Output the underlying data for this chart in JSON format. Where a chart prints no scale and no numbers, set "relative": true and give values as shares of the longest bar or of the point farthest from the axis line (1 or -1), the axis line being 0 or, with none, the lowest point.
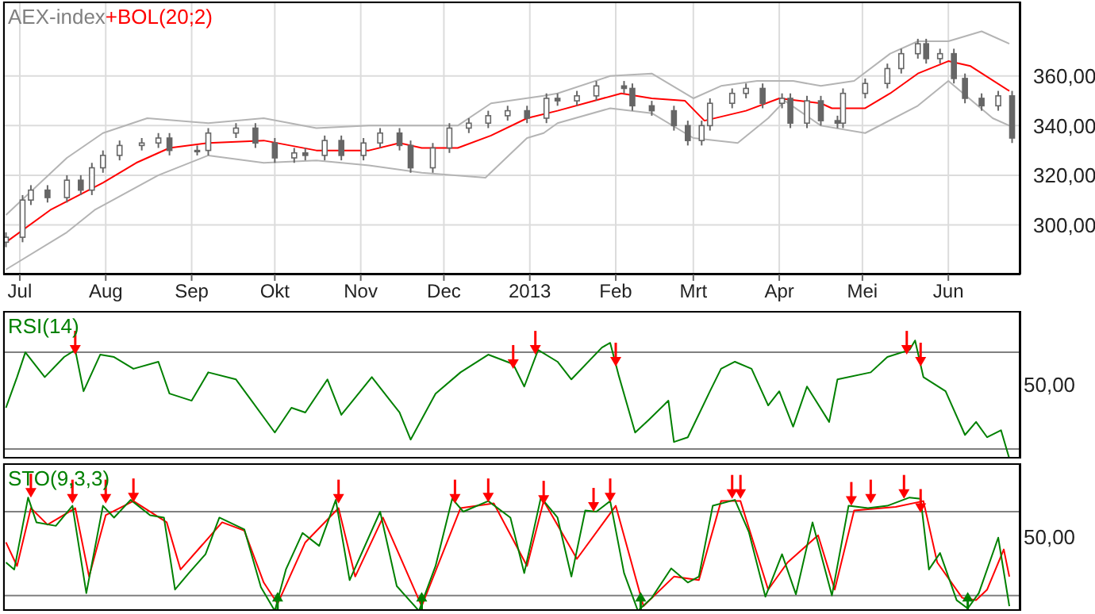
{
  "chart_data": [
    {
      "type": "candlestick",
      "title": "AEX-index",
      "color": "#666666",
      "legend": "top left",
      "grid": true,
      "tick_labels": "xy",
      "xlim": [
        "2012-06-25",
        "2013-06-27"
      ],
      "xticks": [
        {
          "value": "2012-07-01",
          "label": "Jul"
        },
        {
          "value": "2012-08-01",
          "label": "Aug"
        },
        {
          "value": "2012-09-01",
          "label": "Sep"
        },
        {
          "value": "2012-10-01",
          "label": "Okt"
        },
        {
          "value": "2012-11-01",
          "label": "Nov"
        },
        {
          "value": "2012-12-01",
          "label": "Dec"
        },
        {
          "value": "2013-01-01",
          "label": "2013"
        },
        {
          "value": "2013-02-01",
          "label": "Feb"
        },
        {
          "value": "2013-03-01",
          "label": "Mrt"
        },
        {
          "value": "2013-04-01",
          "label": "Apr"
        },
        {
          "value": "2013-05-01",
          "label": "Mei"
        },
        {
          "value": "2013-06-01",
          "label": "Jun"
        }
      ],
      "ylim": [
        280,
        390
      ],
      "yticks": [
        {
          "value": 300,
          "label": "300,00"
        },
        {
          "value": 320,
          "label": "320,00"
        },
        {
          "value": 340,
          "label": "340,00"
        },
        {
          "value": 360,
          "label": "360,00"
        }
      ],
      "x": [
        "2012-06-26",
        "2012-07-02",
        "2012-07-05",
        "2012-07-11",
        "2012-07-18",
        "2012-07-23",
        "2012-07-27",
        "2012-07-31",
        "2012-08-06",
        "2012-08-14",
        "2012-08-20",
        "2012-08-24",
        "2012-09-03",
        "2012-09-07",
        "2012-09-17",
        "2012-09-24",
        "2012-10-01",
        "2012-10-08",
        "2012-10-12",
        "2012-10-19",
        "2012-10-25",
        "2012-11-02",
        "2012-11-08",
        "2012-11-15",
        "2012-11-19",
        "2012-11-27",
        "2012-12-03",
        "2012-12-10",
        "2012-12-17",
        "2012-12-24",
        "2012-12-31",
        "2013-01-07",
        "2013-01-11",
        "2013-01-18",
        "2013-01-25",
        "2013-02-04",
        "2013-02-07",
        "2013-02-14",
        "2013-02-22",
        "2013-02-27",
        "2013-03-04",
        "2013-03-07",
        "2013-03-15",
        "2013-03-20",
        "2013-03-26",
        "2013-04-02",
        "2013-04-05",
        "2013-04-11",
        "2013-04-16",
        "2013-04-22",
        "2013-04-24",
        "2013-05-02",
        "2013-05-10",
        "2013-05-15",
        "2013-05-21",
        "2013-05-24",
        "2013-05-29",
        "2013-06-03",
        "2013-06-07",
        "2013-06-13",
        "2013-06-19",
        "2013-06-24"
      ],
      "ohlc": [
        [
          293,
          297,
          291,
          295
        ],
        [
          295,
          312,
          293,
          310
        ],
        [
          310,
          316,
          308,
          314
        ],
        [
          314,
          316,
          309,
          311
        ],
        [
          311,
          320,
          309,
          318
        ],
        [
          318,
          320,
          312,
          314
        ],
        [
          314,
          325,
          312,
          323
        ],
        [
          323,
          330,
          321,
          328
        ],
        [
          328,
          334,
          326,
          332
        ],
        [
          332,
          335,
          330,
          333
        ],
        [
          333,
          337,
          331,
          335
        ],
        [
          335,
          337,
          328,
          330
        ],
        [
          330,
          332,
          328,
          330
        ],
        [
          330,
          339,
          328,
          337
        ],
        [
          337,
          341,
          335,
          339
        ],
        [
          339,
          341,
          331,
          333
        ],
        [
          333,
          335,
          325,
          327
        ],
        [
          327,
          331,
          325,
          329
        ],
        [
          329,
          331,
          326,
          328
        ],
        [
          328,
          336,
          326,
          334
        ],
        [
          334,
          336,
          326,
          328
        ],
        [
          328,
          335,
          326,
          333
        ],
        [
          333,
          339,
          331,
          337
        ],
        [
          337,
          339,
          330,
          332
        ],
        [
          332,
          334,
          321,
          323
        ],
        [
          323,
          333,
          321,
          331
        ],
        [
          331,
          341,
          329,
          339
        ],
        [
          339,
          343,
          337,
          341
        ],
        [
          341,
          346,
          339,
          344
        ],
        [
          344,
          348,
          342,
          346
        ],
        [
          346,
          348,
          341,
          343
        ],
        [
          343,
          353,
          341,
          351
        ],
        [
          351,
          353,
          348,
          350
        ],
        [
          350,
          354,
          348,
          352
        ],
        [
          352,
          358,
          350,
          356
        ],
        [
          356,
          358,
          353,
          355
        ],
        [
          355,
          357,
          346,
          348
        ],
        [
          348,
          350,
          344,
          346
        ],
        [
          346,
          348,
          338,
          340
        ],
        [
          340,
          342,
          332,
          334
        ],
        [
          334,
          342,
          332,
          340
        ],
        [
          340,
          351,
          338,
          349
        ],
        [
          349,
          355,
          347,
          353
        ],
        [
          353,
          357,
          351,
          355
        ],
        [
          355,
          357,
          347,
          349
        ],
        [
          349,
          353,
          347,
          351
        ],
        [
          351,
          353,
          339,
          341
        ],
        [
          341,
          352,
          339,
          350
        ],
        [
          350,
          352,
          340,
          342
        ],
        [
          342,
          344,
          339,
          341
        ],
        [
          341,
          355,
          339,
          353
        ],
        [
          353,
          359,
          351,
          357
        ],
        [
          357,
          365,
          355,
          363
        ],
        [
          363,
          371,
          361,
          369
        ],
        [
          369,
          375,
          367,
          373
        ],
        [
          373,
          375,
          365,
          367
        ],
        [
          367,
          371,
          365,
          369
        ],
        [
          369,
          371,
          357,
          359
        ],
        [
          359,
          361,
          349,
          351
        ],
        [
          351,
          353,
          346,
          348
        ],
        [
          348,
          354,
          346,
          352
        ],
        [
          352,
          354,
          333,
          335
        ]
      ],
      "series": [
        {
          "type": "line",
          "color": "#b4b4b4",
          "x": [
            "2012-06-26",
            "2012-07-18",
            "2012-07-31",
            "2012-08-16",
            "2012-09-07",
            "2012-09-27",
            "2012-10-16",
            "2012-11-04",
            "2012-11-23",
            "2012-12-06",
            "2012-12-18",
            "2013-01-06",
            "2013-01-11",
            "2013-01-30",
            "2013-02-14",
            "2013-03-01",
            "2013-03-11",
            "2013-03-24",
            "2013-04-06",
            "2013-04-16",
            "2013-04-28",
            "2013-05-11",
            "2013-05-21",
            "2013-06-01",
            "2013-06-13",
            "2013-06-23"
          ],
          "values": [
            304,
            327,
            337,
            343,
            341,
            343,
            339,
            340,
            340,
            340,
            349,
            352,
            353,
            360,
            361,
            351,
            356,
            358,
            358,
            356,
            358,
            369,
            374,
            374,
            378,
            373
          ]
        },
        {
          "type": "line",
          "color": "#b4b4b4",
          "x": [
            "2012-06-26",
            "2012-07-18",
            "2012-07-28",
            "2012-08-20",
            "2012-09-07",
            "2012-09-27",
            "2012-10-16",
            "2012-11-04",
            "2012-11-23",
            "2012-12-16",
            "2012-12-31",
            "2013-01-06",
            "2013-01-11",
            "2013-01-30",
            "2013-02-14",
            "2013-03-01",
            "2013-03-17",
            "2013-03-28",
            "2013-04-03",
            "2013-04-16",
            "2013-05-02",
            "2013-05-21",
            "2013-06-01",
            "2013-06-17",
            "2013-06-23"
          ],
          "values": [
            282,
            297,
            306,
            320,
            328,
            325,
            326,
            324,
            321,
            319,
            335,
            337,
            341,
            347,
            345,
            335,
            333,
            343,
            350,
            340,
            337,
            348,
            358,
            343,
            340
          ]
        },
        {
          "type": "line",
          "name": "+BOL(20;2)",
          "color": "#ff0000",
          "x": [
            "2012-06-26",
            "2012-07-12",
            "2012-07-31",
            "2012-08-12",
            "2012-08-24",
            "2012-09-07",
            "2012-09-27",
            "2012-10-16",
            "2012-11-04",
            "2012-11-15",
            "2012-11-23",
            "2012-12-06",
            "2012-12-18",
            "2012-12-31",
            "2013-01-11",
            "2013-02-03",
            "2013-02-14",
            "2013-02-26",
            "2013-03-05",
            "2013-03-20",
            "2013-04-01",
            "2013-04-16",
            "2013-04-20",
            "2013-05-02",
            "2013-05-11",
            "2013-05-21",
            "2013-06-01",
            "2013-06-09",
            "2013-06-23"
          ],
          "values": [
            293,
            306,
            317,
            325,
            331,
            333,
            334,
            330,
            330,
            333,
            331,
            331,
            336,
            343,
            346,
            353,
            351,
            350,
            342,
            346,
            351,
            349,
            347,
            347,
            353,
            361,
            366,
            364,
            354
          ]
        }
      ]
    },
    {
      "type": "line",
      "legend": "top left",
      "grid": "x",
      "tick_labels": "y",
      "marker": "none",
      "xlim": [
        "2012-06-25",
        "2013-06-27"
      ],
      "xticks": [
        {
          "value": "2012-07-01",
          "label": null
        },
        {
          "value": "2012-08-01",
          "label": null
        },
        {
          "value": "2012-09-01",
          "label": null
        },
        {
          "value": "2012-10-01",
          "label": null
        },
        {
          "value": "2012-11-01",
          "label": null
        },
        {
          "value": "2012-12-01",
          "label": null
        },
        {
          "value": "2013-01-01",
          "label": null
        },
        {
          "value": "2013-02-01",
          "label": null
        },
        {
          "value": "2013-03-01",
          "label": null
        },
        {
          "value": "2013-04-01",
          "label": null
        },
        {
          "value": "2013-05-01",
          "label": null
        },
        {
          "value": "2013-06-01",
          "label": null
        }
      ],
      "relative": true,
      "annotations": [
        "50,00"
      ],
      "ref_lines": [
        {
          "axis": "y",
          "value": 0.9,
          "color": "#808080"
        },
        {
          "axis": "y",
          "value": 0.08,
          "color": "#808080"
        }
      ],
      "series": [
        {
          "name": "RSI(14)",
          "color": "#008000",
          "x": [
            "2012-06-26",
            "2012-06-30",
            "2012-07-03",
            "2012-07-10",
            "2012-07-17",
            "2012-07-21",
            "2012-07-24",
            "2012-07-30",
            "2012-08-04",
            "2012-08-11",
            "2012-08-20",
            "2012-08-24",
            "2012-09-01",
            "2012-09-07",
            "2012-09-17",
            "2012-09-22",
            "2012-10-01",
            "2012-10-07",
            "2012-10-12",
            "2012-10-20",
            "2012-10-25",
            "2012-11-05",
            "2012-11-15",
            "2012-11-19",
            "2012-11-28",
            "2012-12-07",
            "2012-12-17",
            "2012-12-26",
            "2012-12-30",
            "2013-01-04",
            "2013-01-11",
            "2013-01-16",
            "2013-01-27",
            "2013-01-30",
            "2013-02-02",
            "2013-02-08",
            "2013-02-13",
            "2013-02-20",
            "2013-02-22",
            "2013-02-27",
            "2013-03-07",
            "2013-03-11",
            "2013-03-16",
            "2013-03-22",
            "2013-03-28",
            "2013-04-01",
            "2013-04-06",
            "2013-04-11",
            "2013-04-19",
            "2013-04-22",
            "2013-05-04",
            "2013-05-10",
            "2013-05-18",
            "2013-05-20",
            "2013-05-23",
            "2013-05-31",
            "2013-06-07",
            "2013-06-11",
            "2013-06-15",
            "2013-06-20",
            "2013-06-23"
          ],
          "values": [
            0.43,
            0.69,
            0.9,
            0.69,
            0.86,
            0.92,
            0.57,
            0.88,
            0.86,
            0.76,
            0.82,
            0.55,
            0.49,
            0.73,
            0.67,
            0.51,
            0.22,
            0.43,
            0.39,
            0.67,
            0.37,
            0.69,
            0.39,
            0.16,
            0.55,
            0.73,
            0.88,
            0.8,
            0.61,
            0.92,
            0.82,
            0.67,
            0.94,
            0.98,
            0.71,
            0.22,
            0.33,
            0.49,
            0.14,
            0.18,
            0.57,
            0.76,
            0.82,
            0.76,
            0.45,
            0.57,
            0.27,
            0.61,
            0.31,
            0.67,
            0.73,
            0.86,
            0.92,
            1,
            0.69,
            0.57,
            0.2,
            0.31,
            0.18,
            0.24,
            0
          ]
        },
        {
          "type": "scatter",
          "marker": "triangle",
          "color": "#ff0000",
          "x": [
            "2012-07-21",
            "2012-12-26",
            "2013-01-03",
            "2013-02-01",
            "2013-05-17",
            "2013-05-22"
          ],
          "values": [
            0.92,
            0.8,
            0.92,
            0.82,
            0.92,
            0.82
          ]
        }
      ]
    },
    {
      "type": "line",
      "legend": "top left",
      "grid": "x",
      "tick_labels": "y",
      "marker": "none",
      "xlim": [
        "2012-06-25",
        "2013-06-27"
      ],
      "xticks": [
        {
          "value": "2012-07-01",
          "label": null
        },
        {
          "value": "2012-08-01",
          "label": null
        },
        {
          "value": "2012-09-01",
          "label": null
        },
        {
          "value": "2012-10-01",
          "label": null
        },
        {
          "value": "2012-11-01",
          "label": null
        },
        {
          "value": "2012-12-01",
          "label": null
        },
        {
          "value": "2013-01-01",
          "label": null
        },
        {
          "value": "2013-02-01",
          "label": null
        },
        {
          "value": "2013-03-01",
          "label": null
        },
        {
          "value": "2013-04-01",
          "label": null
        },
        {
          "value": "2013-05-01",
          "label": null
        },
        {
          "value": "2013-06-01",
          "label": null
        }
      ],
      "relative": true,
      "annotations": [
        "50,00"
      ],
      "ref_lines": [
        {
          "axis": "y",
          "value": 0.84,
          "color": "#808080"
        },
        {
          "axis": "y",
          "value": 0.13,
          "color": "#808080"
        }
      ],
      "series": [
        {
          "color": "#ff0000",
          "x": [
            "2012-06-26",
            "2012-06-30",
            "2012-07-05",
            "2012-07-11",
            "2012-07-21",
            "2012-07-26",
            "2012-08-01",
            "2012-08-11",
            "2012-08-23",
            "2012-08-28",
            "2012-09-12",
            "2012-09-20",
            "2012-09-27",
            "2012-10-02",
            "2012-10-12",
            "2012-10-24",
            "2012-10-30",
            "2012-11-09",
            "2012-11-23",
            "2012-12-07",
            "2012-12-19",
            "2012-12-31",
            "2013-01-06",
            "2013-01-18",
            "2013-02-01",
            "2013-02-11",
            "2013-02-22",
            "2013-03-03",
            "2013-03-11",
            "2013-03-18",
            "2013-03-28",
            "2013-04-04",
            "2013-04-15",
            "2013-04-21",
            "2013-04-28",
            "2013-05-13",
            "2013-05-23",
            "2013-05-28",
            "2013-06-06",
            "2013-06-11",
            "2013-06-15",
            "2013-06-21",
            "2013-06-23"
          ],
          "values": [
            0.58,
            0.38,
            0.87,
            0.73,
            0.87,
            0.29,
            0.81,
            0.93,
            0.75,
            0.35,
            0.75,
            0.68,
            0.24,
            0.06,
            0.58,
            0.87,
            0.29,
            0.79,
            0.04,
            0.87,
            0.91,
            0.38,
            0.93,
            0.44,
            0.89,
            0.04,
            0.29,
            0.26,
            0.93,
            0.93,
            0.18,
            0.41,
            0.64,
            0.18,
            0.85,
            0.88,
            0.93,
            0.41,
            0.11,
            0.09,
            0.18,
            0.52,
            0.29
          ]
        },
        {
          "name": "STO(9,3,3)",
          "color": "#008000",
          "x": [
            "2012-06-26",
            "2012-06-29",
            "2012-07-04",
            "2012-07-07",
            "2012-07-14",
            "2012-07-20",
            "2012-07-25",
            "2012-07-31",
            "2012-08-04",
            "2012-08-10",
            "2012-08-17",
            "2012-08-22",
            "2012-08-26",
            "2012-08-31",
            "2012-09-06",
            "2012-09-11",
            "2012-09-20",
            "2012-09-26",
            "2012-10-01",
            "2012-10-05",
            "2012-10-11",
            "2012-10-17",
            "2012-10-23",
            "2012-10-28",
            "2012-11-08",
            "2012-11-14",
            "2012-11-22",
            "2012-11-28",
            "2012-12-04",
            "2012-12-08",
            "2012-12-17",
            "2012-12-25",
            "2012-12-30",
            "2013-01-05",
            "2013-01-11",
            "2013-01-16",
            "2013-01-21",
            "2013-01-25",
            "2013-01-30",
            "2013-02-04",
            "2013-02-09",
            "2013-02-14",
            "2013-02-21",
            "2013-02-27",
            "2013-03-03",
            "2013-03-08",
            "2013-03-16",
            "2013-03-21",
            "2013-03-27",
            "2013-04-02",
            "2013-04-07",
            "2013-04-13",
            "2013-04-20",
            "2013-04-26",
            "2013-05-03",
            "2013-05-10",
            "2013-05-18",
            "2013-05-22",
            "2013-05-25",
            "2013-05-29",
            "2013-06-04",
            "2013-06-08",
            "2013-06-12",
            "2013-06-19",
            "2013-06-23"
          ],
          "values": [
            0.41,
            0.35,
            0.96,
            0.75,
            0.72,
            0.89,
            0.15,
            0.89,
            0.79,
            0.94,
            0.81,
            0.79,
            0.18,
            0.32,
            0.48,
            0.79,
            0.69,
            0.2,
            0,
            0.35,
            0.66,
            0.55,
            0.94,
            0.26,
            0.84,
            0.21,
            0,
            0.38,
            0.95,
            0.84,
            0.93,
            0.79,
            0.32,
            0.96,
            0.79,
            0.29,
            0.85,
            0.84,
            0.93,
            0.32,
            0,
            0.11,
            0.36,
            0.24,
            0.29,
            0.89,
            0.94,
            0.67,
            0.12,
            0.48,
            0.14,
            0.75,
            0.13,
            0.89,
            0.87,
            0.89,
            0.96,
            0.95,
            0.35,
            0.49,
            0.09,
            0.02,
            0.15,
            0.62,
            0.04
          ]
        },
        {
          "type": "scatter",
          "marker": "triangle",
          "color": "#ff0000",
          "x": [
            "2012-07-05",
            "2012-07-20",
            "2012-08-01",
            "2012-08-11",
            "2012-10-24",
            "2012-12-05",
            "2012-12-17",
            "2013-01-06",
            "2013-01-24",
            "2013-01-30",
            "2013-03-15",
            "2013-03-18",
            "2013-04-27",
            "2013-05-04",
            "2013-05-16",
            "2013-05-22"
          ],
          "values": [
            1,
            0.95,
            0.95,
            0.96,
            0.95,
            0.95,
            0.96,
            0.94,
            0.88,
            0.96,
            0.99,
            0.99,
            0.93,
            0.95,
            0.99,
            0.87
          ]
        },
        {
          "type": "scatter",
          "marker": "triangle",
          "color": "#008000",
          "x": [
            "2012-10-02",
            "2012-11-23",
            "2013-02-10",
            "2013-06-08"
          ],
          "values": [
            0.12,
            0.12,
            0.12,
            0.12
          ]
        }
      ]
    }
  ]
}
